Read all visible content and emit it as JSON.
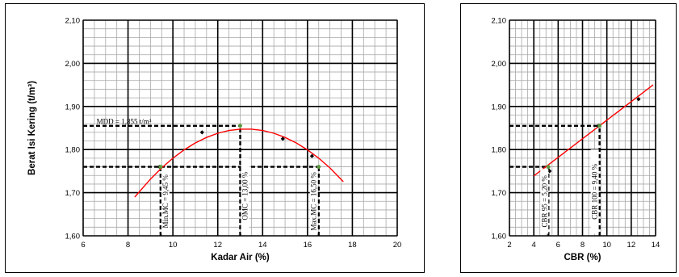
{
  "chart_data": [
    {
      "type": "scatter",
      "title": "",
      "xlabel": "Kadar Air (%)",
      "ylabel": "Berat Isi Kering (t/m³)",
      "xlim": [
        6,
        20
      ],
      "ylim": [
        1.6,
        2.1
      ],
      "x_ticks": [
        "6",
        "8",
        "10",
        "12",
        "14",
        "16",
        "18",
        "20"
      ],
      "y_ticks": [
        "1,60",
        "1,70",
        "1,80",
        "1,90",
        "2,00",
        "2,10"
      ],
      "grid": true,
      "series": [
        {
          "marker": "diamond",
          "color": "#000000",
          "points": [
            [
              9.4,
              1.76
            ],
            [
              11.3,
              1.84
            ],
            [
              13.0,
              1.855
            ],
            [
              14.9,
              1.825
            ],
            [
              16.2,
              1.785
            ],
            [
              16.5,
              1.76
            ]
          ]
        },
        {
          "line": "polynomial-fit",
          "color": "#ff0000",
          "x": [
            8.3,
            9.0,
            9.5,
            10.0,
            10.5,
            11.0,
            11.5,
            12.0,
            12.5,
            13.0,
            13.5,
            14.0,
            14.5,
            15.0,
            15.5,
            16.0,
            16.5,
            17.0,
            17.6
          ],
          "y": [
            1.6898,
            1.7316,
            1.7574,
            1.7799,
            1.7992,
            1.8153,
            1.8281,
            1.8378,
            1.8442,
            1.8474,
            1.8474,
            1.8442,
            1.8378,
            1.8281,
            1.8153,
            1.7992,
            1.7799,
            1.7574,
            1.7255
          ]
        }
      ],
      "highlight_points": [
        [
          9.45,
          1.76
        ],
        [
          13.0,
          1.855
        ],
        [
          16.5,
          1.76
        ]
      ],
      "reference_lines": {
        "horizontal": [
          {
            "y": 1.855,
            "x_from": 6,
            "x_to": 13.0
          },
          {
            "y": 1.76,
            "x_from": 6,
            "x_to": 16.5
          }
        ],
        "vertical": [
          {
            "x": 9.45,
            "y_from": 1.6,
            "y_to": 1.76
          },
          {
            "x": 13.0,
            "y_from": 1.6,
            "y_to": 1.855
          },
          {
            "x": 16.5,
            "y_from": 1.6,
            "y_to": 1.76
          }
        ]
      },
      "annotations": {
        "mdd": "MDD = 1,855 t/m³",
        "min_mc": "Min.MC = 9,45 %",
        "omc": "OMC = 13,00 %",
        "max_mc": "Max.MC = 16,50 %"
      }
    },
    {
      "type": "scatter",
      "title": "",
      "xlabel": "CBR (%)",
      "ylabel": "",
      "xlim": [
        2,
        14
      ],
      "ylim": [
        1.6,
        2.1
      ],
      "x_ticks": [
        "2",
        "4",
        "6",
        "8",
        "10",
        "12",
        "14"
      ],
      "y_ticks": [
        "1,60",
        "1,70",
        "1,80",
        "1,90",
        "2,00",
        "2,10"
      ],
      "grid": true,
      "series": [
        {
          "marker": "diamond",
          "color": "#000000",
          "points": [
            [
              5.3,
              1.75
            ],
            [
              9.3,
              1.855
            ],
            [
              12.6,
              1.917
            ]
          ]
        },
        {
          "line": "linear-fit",
          "color": "#ff0000",
          "x": [
            4.0,
            13.8
          ],
          "y": [
            1.739,
            1.95
          ]
        }
      ],
      "highlight_points": [
        [
          5.2,
          1.76
        ],
        [
          9.4,
          1.855
        ]
      ],
      "reference_lines": {
        "horizontal": [
          {
            "y": 1.855,
            "x_from": 2,
            "x_to": 9.4
          },
          {
            "y": 1.76,
            "x_from": 2,
            "x_to": 5.2
          }
        ],
        "vertical": [
          {
            "x": 5.2,
            "y_from": 1.6,
            "y_to": 1.76
          },
          {
            "x": 9.4,
            "y_from": 1.6,
            "y_to": 1.855
          }
        ]
      },
      "annotations": {
        "cbr95": "CBR 95 = 5,20 %",
        "cbr100": "CBR 100 = 9,40 %"
      }
    }
  ]
}
